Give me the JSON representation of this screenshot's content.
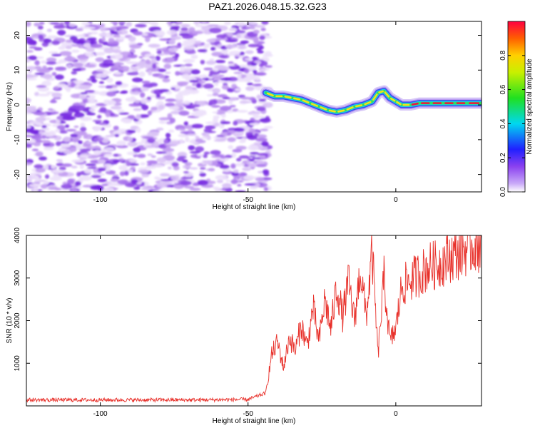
{
  "title": "PAZ1.2026.048.15.32.G23",
  "colors": {
    "line": "#e8302a",
    "axis": "#000000",
    "grid": "#000000"
  },
  "chart_data": [
    {
      "type": "heatmap",
      "xlabel": "Height of straight line (km)",
      "ylabel": "Frequency (Hz)",
      "xlim": [
        -125,
        29
      ],
      "ylim": [
        -25,
        24
      ],
      "xticks": [
        -100,
        -50,
        0
      ],
      "yticks": [
        -20,
        -10,
        0,
        10,
        20
      ],
      "noise_region_x": [
        -125,
        -43
      ],
      "signal_track": {
        "x": [
          -44,
          -41,
          -38,
          -35,
          -32,
          -29,
          -26,
          -23,
          -20,
          -17,
          -14,
          -11,
          -8,
          -6,
          -4,
          -2,
          0,
          2,
          5,
          8,
          12,
          16,
          20,
          24,
          29
        ],
        "frequency": [
          3.5,
          2.5,
          2.5,
          2,
          1.5,
          0.5,
          -0.5,
          -1.5,
          -2,
          -1.5,
          -0.5,
          0,
          1,
          3.5,
          4,
          2,
          1,
          0,
          0,
          0.5,
          0.5,
          0.5,
          0.5,
          0.5,
          0.5
        ]
      },
      "colorbar": {
        "label": "Normalized spectral amplitude",
        "ticks": [
          0.0,
          0.2,
          0.4,
          0.6,
          0.8
        ],
        "range": [
          0,
          1
        ]
      }
    },
    {
      "type": "line",
      "xlabel": "Height of straight line (km)",
      "ylabel": "SNR (10 * v/v)",
      "xlim": [
        -125,
        29
      ],
      "ylim": [
        0,
        4000
      ],
      "xticks": [
        -100,
        -50,
        0
      ],
      "yticks": [
        1000,
        2000,
        3000,
        4000
      ],
      "series": [
        {
          "name": "SNR",
          "x": [
            -125,
            -110,
            -95,
            -80,
            -65,
            -50,
            -44,
            -42,
            -40,
            -38,
            -36,
            -34,
            -32,
            -30,
            -28,
            -26,
            -24,
            -22,
            -20,
            -18,
            -16,
            -14,
            -12,
            -10,
            -8,
            -6,
            -4,
            -2,
            0,
            2,
            4,
            6,
            8,
            10,
            12,
            14,
            16,
            18,
            20,
            22,
            24,
            26,
            28,
            29
          ],
          "y": [
            140,
            140,
            140,
            140,
            140,
            150,
            300,
            1200,
            1500,
            900,
            1600,
            1300,
            1900,
            1400,
            2300,
            1500,
            2500,
            1800,
            2800,
            2100,
            2900,
            2000,
            3200,
            2100,
            3600,
            1200,
            3000,
            1500,
            1800,
            2800,
            2900,
            3000,
            3100,
            3200,
            3300,
            3300,
            3400,
            3500,
            3550,
            3600,
            3700,
            3750,
            3800,
            3900
          ]
        }
      ]
    }
  ]
}
